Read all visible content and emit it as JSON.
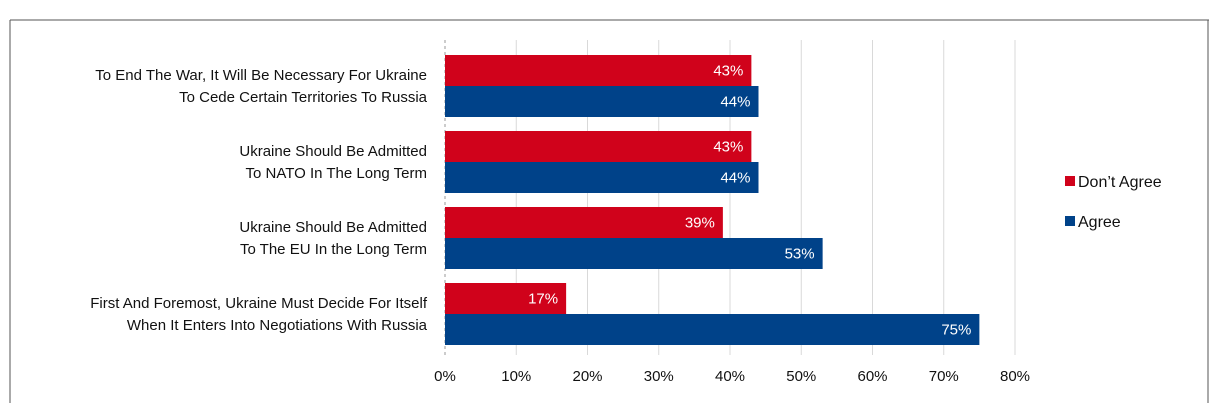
{
  "chart_data": {
    "type": "bar",
    "orientation": "horizontal",
    "categories": [
      [
        "To End The War, It Will Be Necessary For Ukraine",
        "To Cede Certain Territories To Russia"
      ],
      [
        "Ukraine Should Be Admitted",
        "To NATO In The Long Term"
      ],
      [
        "Ukraine Should Be Admitted",
        "To The EU In the Long Term"
      ],
      [
        "First And Foremost, Ukraine Must Decide For Itself",
        "When It Enters Into Negotiations With Russia"
      ]
    ],
    "series": [
      {
        "name": "Don’t Agree",
        "color": "#d0021b",
        "values": [
          43,
          43,
          39,
          17
        ],
        "labels": [
          "43%",
          "43%",
          "39%",
          "17%"
        ]
      },
      {
        "name": "Agree",
        "color": "#004289",
        "values": [
          44,
          44,
          53,
          75
        ],
        "labels": [
          "44%",
          "44%",
          "53%",
          "75%"
        ]
      }
    ],
    "xlim": [
      0,
      80
    ],
    "ticks": [
      0,
      10,
      20,
      30,
      40,
      50,
      60,
      70,
      80
    ],
    "tick_labels": [
      "0%",
      "10%",
      "20%",
      "30%",
      "40%",
      "50%",
      "60%",
      "70%",
      "80%"
    ],
    "grid": true,
    "legend_position": "right",
    "title": "",
    "xlabel": "",
    "ylabel": ""
  }
}
